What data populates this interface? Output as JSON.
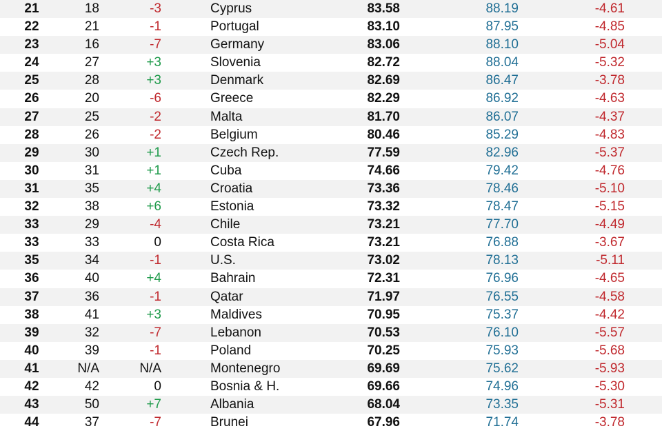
{
  "colors": {
    "row_alt": "#f2f2f2",
    "row": "#ffffff",
    "negative": "#c0282d",
    "positive": "#1e9a4a",
    "secondary_score": "#1f6e94",
    "text": "#111111"
  },
  "rows": [
    {
      "rank": "21",
      "prev": "18",
      "change": "-3",
      "country": "Cyprus",
      "score": "83.58",
      "score2": "88.19",
      "diff": "-4.61"
    },
    {
      "rank": "22",
      "prev": "21",
      "change": "-1",
      "country": "Portugal",
      "score": "83.10",
      "score2": "87.95",
      "diff": "-4.85"
    },
    {
      "rank": "23",
      "prev": "16",
      "change": "-7",
      "country": "Germany",
      "score": "83.06",
      "score2": "88.10",
      "diff": "-5.04"
    },
    {
      "rank": "24",
      "prev": "27",
      "change": "+3",
      "country": "Slovenia",
      "score": "82.72",
      "score2": "88.04",
      "diff": "-5.32"
    },
    {
      "rank": "25",
      "prev": "28",
      "change": "+3",
      "country": "Denmark",
      "score": "82.69",
      "score2": "86.47",
      "diff": "-3.78"
    },
    {
      "rank": "26",
      "prev": "20",
      "change": "-6",
      "country": "Greece",
      "score": "82.29",
      "score2": "86.92",
      "diff": "-4.63"
    },
    {
      "rank": "27",
      "prev": "25",
      "change": "-2",
      "country": "Malta",
      "score": "81.70",
      "score2": "86.07",
      "diff": "-4.37"
    },
    {
      "rank": "28",
      "prev": "26",
      "change": "-2",
      "country": "Belgium",
      "score": "80.46",
      "score2": "85.29",
      "diff": "-4.83"
    },
    {
      "rank": "29",
      "prev": "30",
      "change": "+1",
      "country": "Czech Rep.",
      "score": "77.59",
      "score2": "82.96",
      "diff": "-5.37"
    },
    {
      "rank": "30",
      "prev": "31",
      "change": "+1",
      "country": "Cuba",
      "score": "74.66",
      "score2": "79.42",
      "diff": "-4.76"
    },
    {
      "rank": "31",
      "prev": "35",
      "change": "+4",
      "country": "Croatia",
      "score": "73.36",
      "score2": "78.46",
      "diff": "-5.10"
    },
    {
      "rank": "32",
      "prev": "38",
      "change": "+6",
      "country": "Estonia",
      "score": "73.32",
      "score2": "78.47",
      "diff": "-5.15"
    },
    {
      "rank": "33",
      "prev": "29",
      "change": "-4",
      "country": "Chile",
      "score": "73.21",
      "score2": "77.70",
      "diff": "-4.49"
    },
    {
      "rank": "33",
      "prev": "33",
      "change": "0",
      "country": "Costa Rica",
      "score": "73.21",
      "score2": "76.88",
      "diff": "-3.67"
    },
    {
      "rank": "35",
      "prev": "34",
      "change": "-1",
      "country": "U.S.",
      "score": "73.02",
      "score2": "78.13",
      "diff": "-5.11"
    },
    {
      "rank": "36",
      "prev": "40",
      "change": "+4",
      "country": "Bahrain",
      "score": "72.31",
      "score2": "76.96",
      "diff": "-4.65"
    },
    {
      "rank": "37",
      "prev": "36",
      "change": "-1",
      "country": "Qatar",
      "score": "71.97",
      "score2": "76.55",
      "diff": "-4.58"
    },
    {
      "rank": "38",
      "prev": "41",
      "change": "+3",
      "country": "Maldives",
      "score": "70.95",
      "score2": "75.37",
      "diff": "-4.42"
    },
    {
      "rank": "39",
      "prev": "32",
      "change": "-7",
      "country": "Lebanon",
      "score": "70.53",
      "score2": "76.10",
      "diff": "-5.57"
    },
    {
      "rank": "40",
      "prev": "39",
      "change": "-1",
      "country": "Poland",
      "score": "70.25",
      "score2": "75.93",
      "diff": "-5.68"
    },
    {
      "rank": "41",
      "prev": "N/A",
      "change": "N/A",
      "country": "Montenegro",
      "score": "69.69",
      "score2": "75.62",
      "diff": "-5.93"
    },
    {
      "rank": "42",
      "prev": "42",
      "change": "0",
      "country": "Bosnia & H.",
      "score": "69.66",
      "score2": "74.96",
      "diff": "-5.30"
    },
    {
      "rank": "43",
      "prev": "50",
      "change": "+7",
      "country": "Albania",
      "score": "68.04",
      "score2": "73.35",
      "diff": "-5.31"
    },
    {
      "rank": "44",
      "prev": "37",
      "change": "-7",
      "country": "Brunei",
      "score": "67.96",
      "score2": "71.74",
      "diff": "-3.78"
    }
  ]
}
